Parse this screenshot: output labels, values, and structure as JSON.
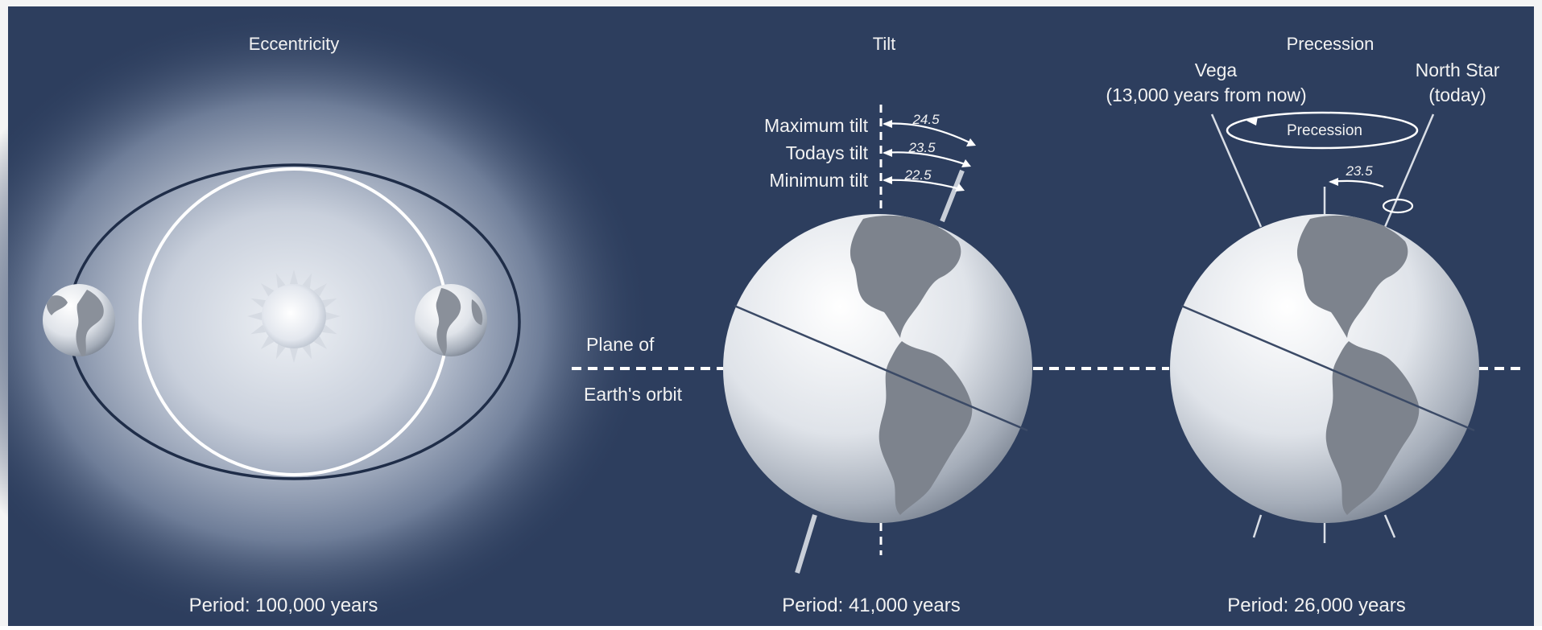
{
  "colors": {
    "background": "#2d3e5e",
    "frame": "#f4f4f4",
    "text": "#f2f2f2",
    "glow_inner": "#e9edf3",
    "orbit_dark": "#1f2d48",
    "globe_light": "#f7f8fa",
    "continent": "#7d838d"
  },
  "panels": {
    "eccentricity": {
      "title": "Eccentricity",
      "period": "Period: 100,000 years"
    },
    "tilt": {
      "title": "Tilt",
      "period": "Period: 41,000 years",
      "labels": {
        "maximum": "Maximum tilt",
        "today": "Todays tilt",
        "minimum": "Minimum tilt"
      },
      "angles": {
        "maximum": "24.5",
        "today": "23.5",
        "minimum": "22.5"
      },
      "plane_label_line1": "Plane of",
      "plane_label_line2": "Earth's orbit"
    },
    "precession": {
      "title": "Precession",
      "period": "Period: 26,000 years",
      "vega_line1": "Vega",
      "vega_line2": "(13,000 years from now)",
      "north_star_line1": "North Star",
      "north_star_line2": "(today)",
      "arrow_label": "Precession",
      "angle": "23.5"
    }
  }
}
